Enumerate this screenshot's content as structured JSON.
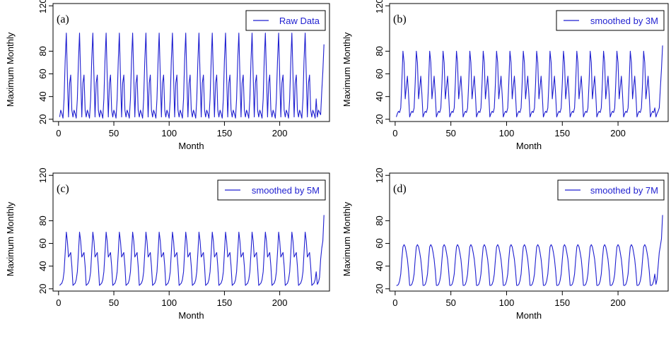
{
  "colors": {
    "series": "#1f1fd0",
    "axis": "#000000",
    "background": "#ffffff"
  },
  "chart_data": [
    {
      "type": "line",
      "panel_tag": "(a)",
      "xlabel": "Month",
      "ylabel": "Maximum Monthly",
      "xlim": [
        -5,
        245
      ],
      "ylim": [
        18,
        122
      ],
      "xticks": [
        0,
        50,
        100,
        150,
        200
      ],
      "yticks": [
        20,
        40,
        60,
        80,
        120
      ],
      "legend": {
        "placement": "top-right"
      },
      "series": [
        {
          "name": "Raw Data",
          "cycle": [
            22,
            28,
            25,
            21,
            38,
            72,
            96,
            58,
            22,
            52,
            59,
            28,
            20
          ],
          "ending": [
            22,
            28,
            26,
            24,
            45,
            62,
            86
          ]
        }
      ]
    },
    {
      "type": "line",
      "panel_tag": "(b)",
      "xlabel": "Month",
      "ylabel": "Maximum Monthly",
      "xlim": [
        -5,
        245
      ],
      "ylim": [
        18,
        122
      ],
      "xticks": [
        0,
        50,
        100,
        150,
        200
      ],
      "yticks": [
        20,
        40,
        60,
        80,
        120
      ],
      "legend": {
        "placement": "top-right"
      },
      "series": [
        {
          "name": "smoothed by 3M",
          "cycle": [
            22,
            25,
            27,
            26,
            30,
            52,
            80,
            70,
            38,
            48,
            58,
            42,
            23
          ],
          "ending": [
            22,
            25,
            27,
            30,
            48,
            64,
            85
          ]
        }
      ]
    },
    {
      "type": "line",
      "panel_tag": "(c)",
      "xlabel": "Month",
      "ylabel": "Maximum Monthly",
      "xlim": [
        -5,
        245
      ],
      "ylim": [
        18,
        122
      ],
      "xticks": [
        0,
        50,
        100,
        150,
        200
      ],
      "yticks": [
        20,
        40,
        60,
        80,
        120
      ],
      "legend": {
        "placement": "top-right"
      },
      "series": [
        {
          "name": "smoothed by 5M",
          "cycle": [
            23,
            24,
            25,
            28,
            35,
            52,
            70,
            62,
            48,
            50,
            52,
            40,
            24
          ],
          "ending": [
            24,
            26,
            30,
            46,
            56,
            62,
            85
          ]
        }
      ]
    },
    {
      "type": "line",
      "panel_tag": "(d)",
      "xlabel": "Month",
      "ylabel": "Maximum Monthly",
      "xlim": [
        -5,
        245
      ],
      "ylim": [
        18,
        122
      ],
      "xticks": [
        0,
        50,
        100,
        150,
        200
      ],
      "yticks": [
        20,
        40,
        60,
        80,
        120
      ],
      "legend": {
        "placement": "top-right"
      },
      "series": [
        {
          "name": "smoothed by 7M",
          "cycle": [
            23,
            23,
            24,
            27,
            33,
            46,
            57,
            59,
            57,
            52,
            46,
            36,
            25
          ],
          "ending": [
            24,
            28,
            40,
            52,
            58,
            64,
            85
          ]
        }
      ]
    }
  ]
}
